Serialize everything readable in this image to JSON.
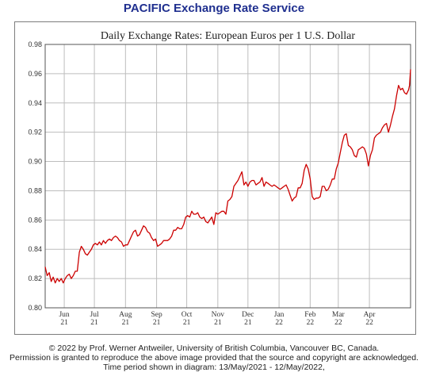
{
  "page": {
    "service_title": "PACIFIC Exchange Rate Service"
  },
  "footer": {
    "line1": "© 2022 by Prof. Werner Antweiler, University of British Columbia, Vancouver BC, Canada.",
    "line2": "Permission is granted to reproduce the above image provided that the source and copyright are acknowledged.",
    "line3": "Time period shown in diagram: 13/May/2021 - 12/May/2022,"
  },
  "colors": {
    "title": "#1f2f8f",
    "series": "#cc0000",
    "grid": "#bdbdbd",
    "frame": "#7d7d7d"
  },
  "chart_data": {
    "type": "line",
    "title": "Daily Exchange Rates: European Euros per 1 U.S. Dollar",
    "xlabel": "",
    "ylabel": "",
    "ylim": [
      0.8,
      0.98
    ],
    "yticks": [
      "0.80",
      "0.82",
      "0.84",
      "0.86",
      "0.88",
      "0.90",
      "0.92",
      "0.94",
      "0.96",
      "0.98"
    ],
    "xlim": [
      "2021-05-13",
      "2022-05-12"
    ],
    "xticks": [
      {
        "date": "2021-06-01",
        "month": "Jun",
        "year": "21"
      },
      {
        "date": "2021-07-01",
        "month": "Jul",
        "year": "21"
      },
      {
        "date": "2021-08-01",
        "month": "Aug",
        "year": "21"
      },
      {
        "date": "2021-09-01",
        "month": "Sep",
        "year": "21"
      },
      {
        "date": "2021-10-01",
        "month": "Oct",
        "year": "21"
      },
      {
        "date": "2021-11-01",
        "month": "Nov",
        "year": "21"
      },
      {
        "date": "2021-12-01",
        "month": "Dec",
        "year": "21"
      },
      {
        "date": "2022-01-01",
        "month": "Jan",
        "year": "22"
      },
      {
        "date": "2022-02-01",
        "month": "Feb",
        "year": "22"
      },
      {
        "date": "2022-03-01",
        "month": "Mar",
        "year": "22"
      },
      {
        "date": "2022-04-01",
        "month": "Apr",
        "year": "22"
      }
    ],
    "grid": true,
    "legend": "none",
    "series": [
      {
        "points": [
          [
            "2021-05-13",
            0.828
          ],
          [
            "2021-05-15",
            0.822
          ],
          [
            "2021-05-17",
            0.824
          ],
          [
            "2021-05-19",
            0.818
          ],
          [
            "2021-05-21",
            0.821
          ],
          [
            "2021-05-23",
            0.817
          ],
          [
            "2021-05-25",
            0.82
          ],
          [
            "2021-05-27",
            0.818
          ],
          [
            "2021-05-29",
            0.82
          ],
          [
            "2021-05-31",
            0.817
          ],
          [
            "2021-06-02",
            0.82
          ],
          [
            "2021-06-04",
            0.822
          ],
          [
            "2021-06-06",
            0.823
          ],
          [
            "2021-06-08",
            0.82
          ],
          [
            "2021-06-10",
            0.822
          ],
          [
            "2021-06-12",
            0.825
          ],
          [
            "2021-06-14",
            0.825
          ],
          [
            "2021-06-16",
            0.838
          ],
          [
            "2021-06-18",
            0.842
          ],
          [
            "2021-06-20",
            0.84
          ],
          [
            "2021-06-22",
            0.837
          ],
          [
            "2021-06-24",
            0.836
          ],
          [
            "2021-06-26",
            0.838
          ],
          [
            "2021-06-28",
            0.84
          ],
          [
            "2021-06-30",
            0.843
          ],
          [
            "2021-07-02",
            0.844
          ],
          [
            "2021-07-04",
            0.843
          ],
          [
            "2021-07-06",
            0.845
          ],
          [
            "2021-07-08",
            0.843
          ],
          [
            "2021-07-10",
            0.846
          ],
          [
            "2021-07-12",
            0.844
          ],
          [
            "2021-07-14",
            0.846
          ],
          [
            "2021-07-16",
            0.847
          ],
          [
            "2021-07-18",
            0.846
          ],
          [
            "2021-07-20",
            0.848
          ],
          [
            "2021-07-22",
            0.849
          ],
          [
            "2021-07-24",
            0.848
          ],
          [
            "2021-07-26",
            0.846
          ],
          [
            "2021-07-28",
            0.845
          ],
          [
            "2021-07-30",
            0.842
          ],
          [
            "2021-08-01",
            0.843
          ],
          [
            "2021-08-03",
            0.843
          ],
          [
            "2021-08-05",
            0.846
          ],
          [
            "2021-08-07",
            0.849
          ],
          [
            "2021-08-09",
            0.852
          ],
          [
            "2021-08-11",
            0.853
          ],
          [
            "2021-08-13",
            0.849
          ],
          [
            "2021-08-15",
            0.85
          ],
          [
            "2021-08-17",
            0.853
          ],
          [
            "2021-08-19",
            0.856
          ],
          [
            "2021-08-21",
            0.855
          ],
          [
            "2021-08-23",
            0.852
          ],
          [
            "2021-08-25",
            0.851
          ],
          [
            "2021-08-27",
            0.848
          ],
          [
            "2021-08-29",
            0.846
          ],
          [
            "2021-08-31",
            0.847
          ],
          [
            "2021-09-02",
            0.842
          ],
          [
            "2021-09-04",
            0.843
          ],
          [
            "2021-09-06",
            0.844
          ],
          [
            "2021-09-08",
            0.846
          ],
          [
            "2021-09-10",
            0.846
          ],
          [
            "2021-09-12",
            0.846
          ],
          [
            "2021-09-14",
            0.847
          ],
          [
            "2021-09-16",
            0.849
          ],
          [
            "2021-09-18",
            0.853
          ],
          [
            "2021-09-20",
            0.853
          ],
          [
            "2021-09-22",
            0.855
          ],
          [
            "2021-09-24",
            0.854
          ],
          [
            "2021-09-26",
            0.854
          ],
          [
            "2021-09-28",
            0.857
          ],
          [
            "2021-09-30",
            0.862
          ],
          [
            "2021-10-02",
            0.863
          ],
          [
            "2021-10-04",
            0.862
          ],
          [
            "2021-10-06",
            0.866
          ],
          [
            "2021-10-08",
            0.864
          ],
          [
            "2021-10-10",
            0.864
          ],
          [
            "2021-10-12",
            0.865
          ],
          [
            "2021-10-14",
            0.862
          ],
          [
            "2021-10-16",
            0.861
          ],
          [
            "2021-10-18",
            0.862
          ],
          [
            "2021-10-20",
            0.859
          ],
          [
            "2021-10-22",
            0.858
          ],
          [
            "2021-10-24",
            0.86
          ],
          [
            "2021-10-26",
            0.862
          ],
          [
            "2021-10-28",
            0.857
          ],
          [
            "2021-10-30",
            0.865
          ],
          [
            "2021-11-01",
            0.864
          ],
          [
            "2021-11-03",
            0.865
          ],
          [
            "2021-11-05",
            0.866
          ],
          [
            "2021-11-07",
            0.866
          ],
          [
            "2021-11-09",
            0.864
          ],
          [
            "2021-11-11",
            0.873
          ],
          [
            "2021-11-13",
            0.874
          ],
          [
            "2021-11-15",
            0.876
          ],
          [
            "2021-11-17",
            0.883
          ],
          [
            "2021-11-19",
            0.885
          ],
          [
            "2021-11-21",
            0.887
          ],
          [
            "2021-11-23",
            0.89
          ],
          [
            "2021-11-25",
            0.893
          ],
          [
            "2021-11-27",
            0.884
          ],
          [
            "2021-11-29",
            0.886
          ],
          [
            "2021-12-01",
            0.883
          ],
          [
            "2021-12-03",
            0.886
          ],
          [
            "2021-12-05",
            0.887
          ],
          [
            "2021-12-07",
            0.887
          ],
          [
            "2021-12-09",
            0.884
          ],
          [
            "2021-12-11",
            0.885
          ],
          [
            "2021-12-13",
            0.886
          ],
          [
            "2021-12-15",
            0.889
          ],
          [
            "2021-12-17",
            0.883
          ],
          [
            "2021-12-19",
            0.886
          ],
          [
            "2021-12-21",
            0.885
          ],
          [
            "2021-12-23",
            0.884
          ],
          [
            "2021-12-25",
            0.883
          ],
          [
            "2021-12-27",
            0.884
          ],
          [
            "2021-12-29",
            0.883
          ],
          [
            "2021-12-31",
            0.882
          ],
          [
            "2022-01-02",
            0.881
          ],
          [
            "2022-01-04",
            0.882
          ],
          [
            "2022-01-06",
            0.883
          ],
          [
            "2022-01-08",
            0.884
          ],
          [
            "2022-01-10",
            0.881
          ],
          [
            "2022-01-12",
            0.877
          ],
          [
            "2022-01-14",
            0.873
          ],
          [
            "2022-01-16",
            0.875
          ],
          [
            "2022-01-18",
            0.876
          ],
          [
            "2022-01-20",
            0.882
          ],
          [
            "2022-01-22",
            0.882
          ],
          [
            "2022-01-24",
            0.885
          ],
          [
            "2022-01-26",
            0.894
          ],
          [
            "2022-01-28",
            0.898
          ],
          [
            "2022-01-30",
            0.895
          ],
          [
            "2022-02-01",
            0.888
          ],
          [
            "2022-02-03",
            0.876
          ],
          [
            "2022-02-05",
            0.874
          ],
          [
            "2022-02-07",
            0.875
          ],
          [
            "2022-02-09",
            0.875
          ],
          [
            "2022-02-11",
            0.876
          ],
          [
            "2022-02-13",
            0.883
          ],
          [
            "2022-02-15",
            0.883
          ],
          [
            "2022-02-17",
            0.88
          ],
          [
            "2022-02-19",
            0.881
          ],
          [
            "2022-02-21",
            0.884
          ],
          [
            "2022-02-23",
            0.888
          ],
          [
            "2022-02-25",
            0.888
          ],
          [
            "2022-02-27",
            0.895
          ],
          [
            "2022-03-01",
            0.899
          ],
          [
            "2022-03-03",
            0.906
          ],
          [
            "2022-03-05",
            0.913
          ],
          [
            "2022-03-07",
            0.918
          ],
          [
            "2022-03-09",
            0.919
          ],
          [
            "2022-03-11",
            0.911
          ],
          [
            "2022-03-13",
            0.91
          ],
          [
            "2022-03-15",
            0.908
          ],
          [
            "2022-03-17",
            0.904
          ],
          [
            "2022-03-19",
            0.903
          ],
          [
            "2022-03-21",
            0.908
          ],
          [
            "2022-03-23",
            0.909
          ],
          [
            "2022-03-25",
            0.91
          ],
          [
            "2022-03-27",
            0.909
          ],
          [
            "2022-03-29",
            0.905
          ],
          [
            "2022-03-31",
            0.897
          ],
          [
            "2022-04-02",
            0.904
          ],
          [
            "2022-04-04",
            0.908
          ],
          [
            "2022-04-06",
            0.916
          ],
          [
            "2022-04-08",
            0.918
          ],
          [
            "2022-04-10",
            0.919
          ],
          [
            "2022-04-12",
            0.92
          ],
          [
            "2022-04-14",
            0.923
          ],
          [
            "2022-04-16",
            0.925
          ],
          [
            "2022-04-18",
            0.926
          ],
          [
            "2022-04-20",
            0.92
          ],
          [
            "2022-04-22",
            0.925
          ],
          [
            "2022-04-24",
            0.931
          ],
          [
            "2022-04-26",
            0.936
          ],
          [
            "2022-04-28",
            0.945
          ],
          [
            "2022-04-30",
            0.952
          ],
          [
            "2022-05-02",
            0.949
          ],
          [
            "2022-05-04",
            0.95
          ],
          [
            "2022-05-06",
            0.947
          ],
          [
            "2022-05-08",
            0.946
          ],
          [
            "2022-05-10",
            0.949
          ],
          [
            "2022-05-11",
            0.952
          ],
          [
            "2022-05-12",
            0.963
          ]
        ]
      }
    ]
  }
}
